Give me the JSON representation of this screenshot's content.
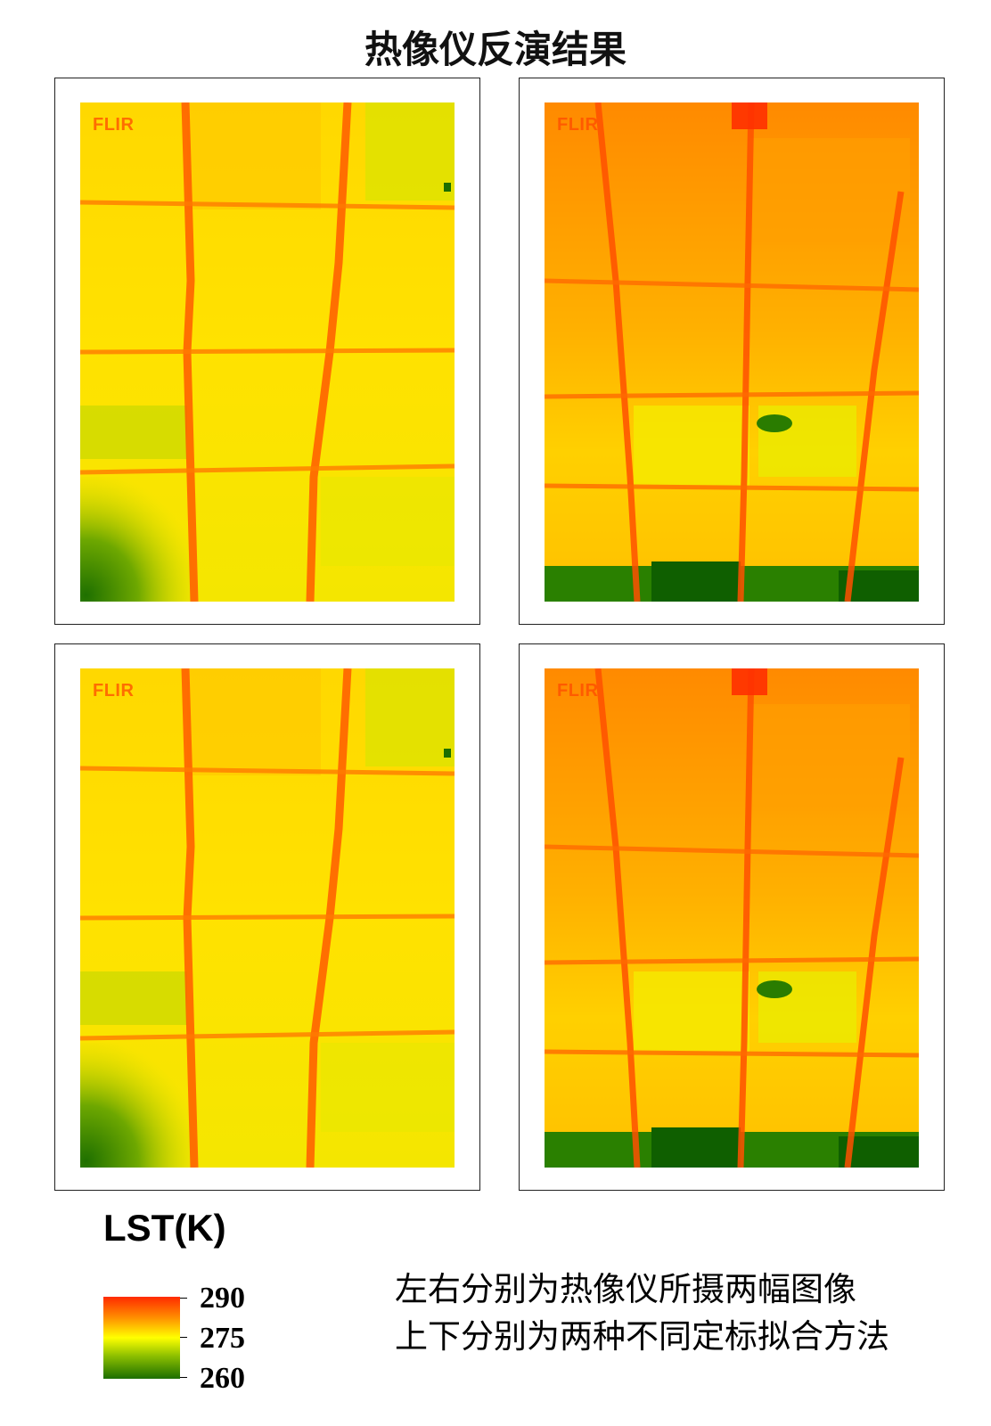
{
  "title": "热像仪反演结果",
  "watermark": "FLIR",
  "panels": [
    {
      "position": "top-left",
      "palette": "cool"
    },
    {
      "position": "top-right",
      "palette": "warm"
    },
    {
      "position": "bottom-left",
      "palette": "cool"
    },
    {
      "position": "bottom-right",
      "palette": "warm"
    }
  ],
  "legend": {
    "title": "LST(K)",
    "ticks": [
      "290",
      "275",
      "260"
    ],
    "colors": [
      "#ff2a00",
      "#ff8c00",
      "#ffff00",
      "#8ec000",
      "#1c6e00"
    ]
  },
  "notes": [
    "左右分别为热像仪所摄两幅图像",
    "上下分别为两种不同定标拟合方法"
  ]
}
